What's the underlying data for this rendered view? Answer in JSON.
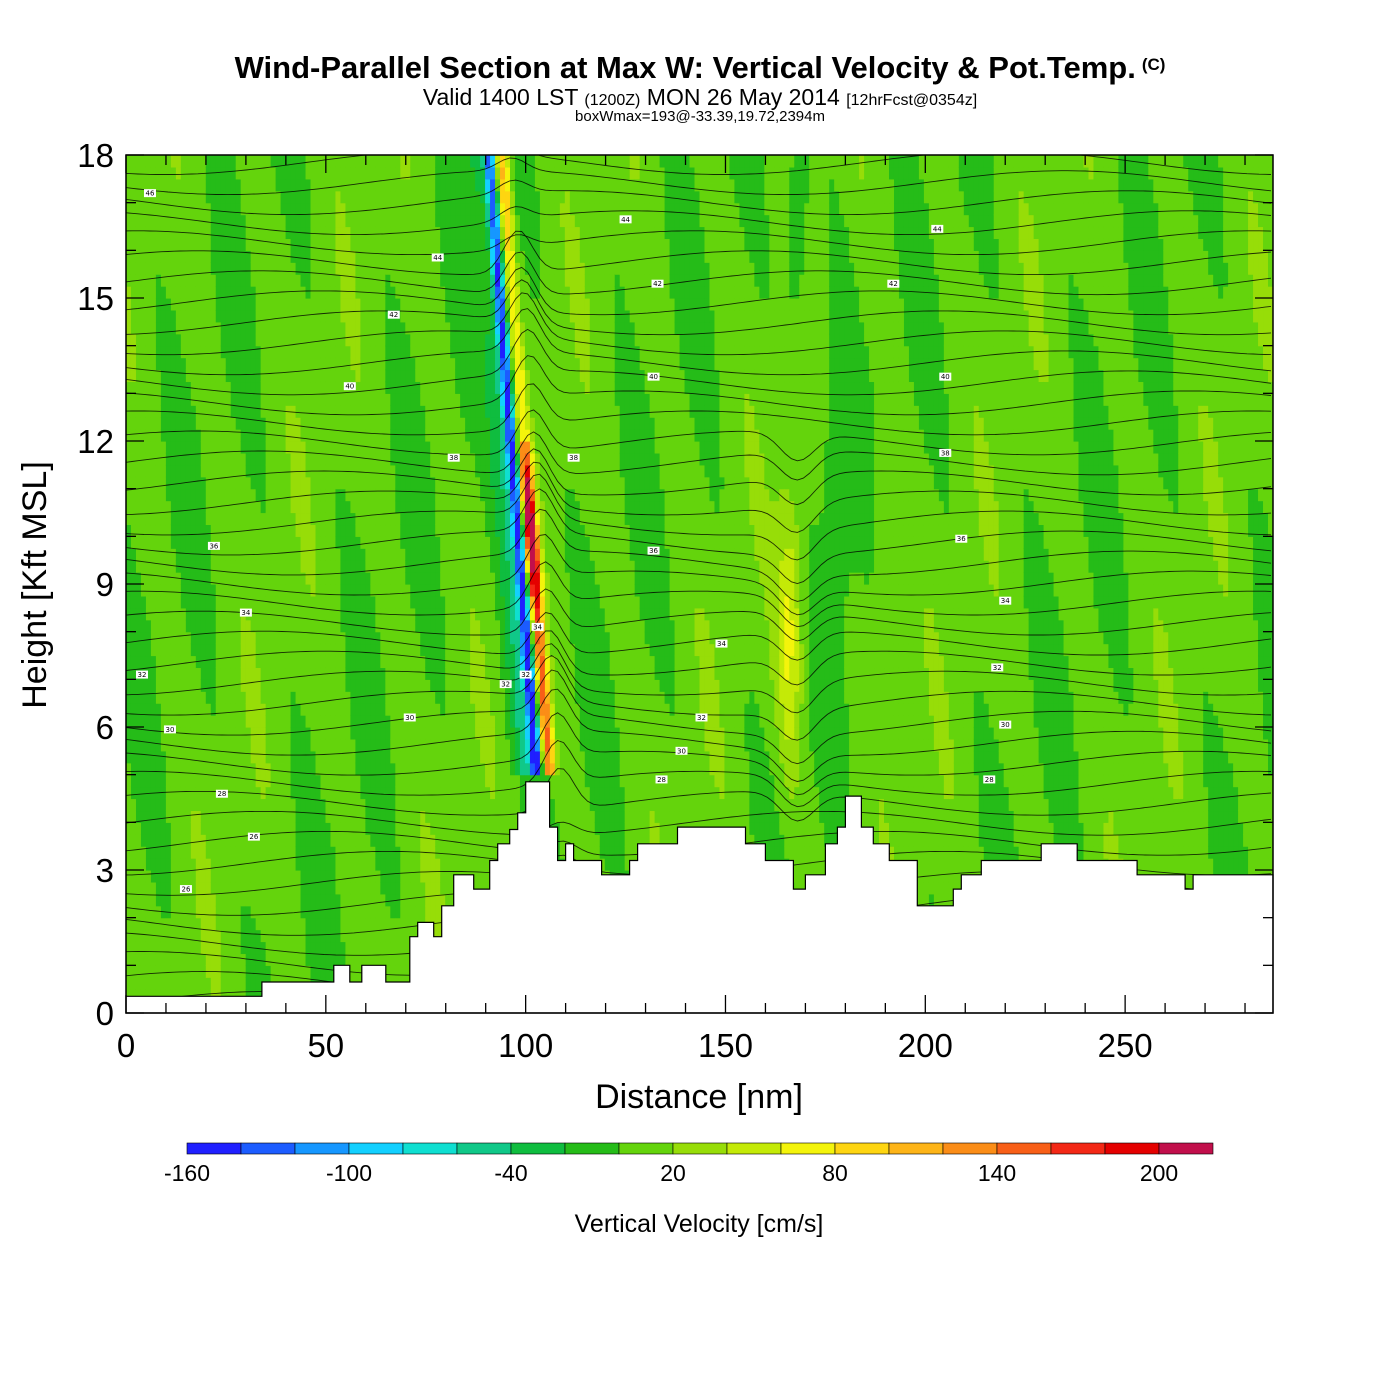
{
  "header": {
    "title": "Wind-Parallel Section at Max W: Vertical Velocity & Pot.Temp.",
    "copyright": "(C)",
    "valid_prefix": "Valid 1400 LST",
    "valid_utc": "(1200Z)",
    "valid_date": "MON 26 May 2014",
    "forecast": "[12hrFcst@0354z]",
    "boxwmax": "boxWmax=193@-33.39,19.72,2394m"
  },
  "chart_data": {
    "type": "heatmap",
    "xlabel": "Distance [nm]",
    "ylabel": "Height [Kft MSL]",
    "xlim": [
      0,
      287
    ],
    "ylim": [
      0,
      18
    ],
    "x_ticks": [
      0,
      50,
      100,
      150,
      200,
      250
    ],
    "y_ticks": [
      0,
      3,
      6,
      9,
      12,
      15,
      18
    ],
    "colorbar": {
      "title": "Vertical Velocity [cm/s]",
      "levels": [
        -160,
        -140,
        -120,
        -100,
        -80,
        -60,
        -40,
        -20,
        0,
        20,
        40,
        60,
        80,
        100,
        120,
        140,
        160,
        180,
        200,
        220
      ],
      "tick_labels": [
        "-160",
        "-100",
        "-40",
        "20",
        "80",
        "140",
        "200"
      ],
      "colors": [
        "#1f1fff",
        "#1c5cff",
        "#1697ff",
        "#13d0ff",
        "#0fdfd1",
        "#10c888",
        "#0fbd3f",
        "#25bc18",
        "#64d40c",
        "#97dd08",
        "#c4ea07",
        "#f4f40b",
        "#fed511",
        "#fdb417",
        "#fb8d17",
        "#f85f17",
        "#f32816",
        "#e40000",
        "#c10f4b"
      ]
    },
    "updraft_max_cm_s": 193,
    "terrain_kft": [
      [
        0,
        0.35
      ],
      [
        34,
        0.35
      ],
      [
        34,
        0.65
      ],
      [
        52,
        0.65
      ],
      [
        52,
        1.0
      ],
      [
        56,
        1.0
      ],
      [
        56,
        0.65
      ],
      [
        59,
        0.65
      ],
      [
        59,
        1.0
      ],
      [
        65,
        1.0
      ],
      [
        65,
        0.65
      ],
      [
        71,
        0.65
      ],
      [
        71,
        1.6
      ],
      [
        73,
        1.6
      ],
      [
        73,
        1.9
      ],
      [
        77,
        1.9
      ],
      [
        77,
        1.6
      ],
      [
        79,
        1.6
      ],
      [
        79,
        2.25
      ],
      [
        82,
        2.25
      ],
      [
        82,
        2.9
      ],
      [
        87,
        2.9
      ],
      [
        87,
        2.6
      ],
      [
        91,
        2.6
      ],
      [
        91,
        3.2
      ],
      [
        93,
        3.2
      ],
      [
        93,
        3.55
      ],
      [
        96,
        3.55
      ],
      [
        96,
        3.85
      ],
      [
        98,
        3.85
      ],
      [
        98,
        4.2
      ],
      [
        100,
        4.2
      ],
      [
        100,
        4.85
      ],
      [
        106,
        4.85
      ],
      [
        106,
        3.9
      ],
      [
        108,
        3.9
      ],
      [
        108,
        3.2
      ],
      [
        110,
        3.2
      ],
      [
        110,
        3.55
      ],
      [
        112,
        3.55
      ],
      [
        112,
        3.2
      ],
      [
        119,
        3.2
      ],
      [
        119,
        2.9
      ],
      [
        126,
        2.9
      ],
      [
        126,
        3.2
      ],
      [
        128,
        3.2
      ],
      [
        128,
        3.55
      ],
      [
        138,
        3.55
      ],
      [
        138,
        3.9
      ],
      [
        155,
        3.9
      ],
      [
        155,
        3.55
      ],
      [
        160,
        3.55
      ],
      [
        160,
        3.2
      ],
      [
        167,
        3.2
      ],
      [
        167,
        2.6
      ],
      [
        170,
        2.6
      ],
      [
        170,
        2.9
      ],
      [
        175,
        2.9
      ],
      [
        175,
        3.55
      ],
      [
        178,
        3.55
      ],
      [
        178,
        3.9
      ],
      [
        180,
        3.9
      ],
      [
        180,
        4.55
      ],
      [
        184,
        4.55
      ],
      [
        184,
        3.9
      ],
      [
        187,
        3.9
      ],
      [
        187,
        3.55
      ],
      [
        191,
        3.55
      ],
      [
        191,
        3.2
      ],
      [
        198,
        3.2
      ],
      [
        198,
        2.25
      ],
      [
        207,
        2.25
      ],
      [
        207,
        2.6
      ],
      [
        209,
        2.6
      ],
      [
        209,
        2.9
      ],
      [
        214,
        2.9
      ],
      [
        214,
        3.2
      ],
      [
        229,
        3.2
      ],
      [
        229,
        3.55
      ],
      [
        238,
        3.55
      ],
      [
        238,
        3.2
      ],
      [
        253,
        3.2
      ],
      [
        253,
        2.9
      ],
      [
        265,
        2.9
      ],
      [
        265,
        2.6
      ],
      [
        267,
        2.6
      ],
      [
        267,
        2.9
      ],
      [
        287,
        2.9
      ]
    ],
    "contour_labels": [
      {
        "x": 6,
        "y": 17.2,
        "text": "46"
      },
      {
        "x": 78,
        "y": 15.85,
        "text": "44"
      },
      {
        "x": 67,
        "y": 14.65,
        "text": "42"
      },
      {
        "x": 56,
        "y": 13.15,
        "text": "40"
      },
      {
        "x": 125,
        "y": 16.65,
        "text": "44"
      },
      {
        "x": 133,
        "y": 15.3,
        "text": "42"
      },
      {
        "x": 132,
        "y": 13.35,
        "text": "40"
      },
      {
        "x": 203,
        "y": 16.45,
        "text": "44"
      },
      {
        "x": 192,
        "y": 15.3,
        "text": "42"
      },
      {
        "x": 205,
        "y": 13.35,
        "text": "40"
      },
      {
        "x": 82,
        "y": 11.65,
        "text": "38"
      },
      {
        "x": 112,
        "y": 11.65,
        "text": "38"
      },
      {
        "x": 205,
        "y": 11.75,
        "text": "38"
      },
      {
        "x": 22,
        "y": 9.8,
        "text": "36"
      },
      {
        "x": 132,
        "y": 9.7,
        "text": "36"
      },
      {
        "x": 209,
        "y": 9.95,
        "text": "36"
      },
      {
        "x": 30,
        "y": 8.4,
        "text": "34"
      },
      {
        "x": 149,
        "y": 7.75,
        "text": "34"
      },
      {
        "x": 220,
        "y": 8.65,
        "text": "34"
      },
      {
        "x": 4,
        "y": 7.1,
        "text": "32"
      },
      {
        "x": 103,
        "y": 8.1,
        "text": "34"
      },
      {
        "x": 100,
        "y": 7.1,
        "text": "32"
      },
      {
        "x": 95,
        "y": 6.9,
        "text": "32"
      },
      {
        "x": 144,
        "y": 6.2,
        "text": "32"
      },
      {
        "x": 218,
        "y": 7.25,
        "text": "32"
      },
      {
        "x": 11,
        "y": 5.95,
        "text": "30"
      },
      {
        "x": 71,
        "y": 6.2,
        "text": "30"
      },
      {
        "x": 139,
        "y": 5.5,
        "text": "30"
      },
      {
        "x": 220,
        "y": 6.05,
        "text": "30"
      },
      {
        "x": 24,
        "y": 4.6,
        "text": "28"
      },
      {
        "x": 134,
        "y": 4.9,
        "text": "28"
      },
      {
        "x": 216,
        "y": 4.9,
        "text": "28"
      },
      {
        "x": 32,
        "y": 3.7,
        "text": "26"
      },
      {
        "x": 15,
        "y": 2.6,
        "text": "26"
      }
    ]
  }
}
